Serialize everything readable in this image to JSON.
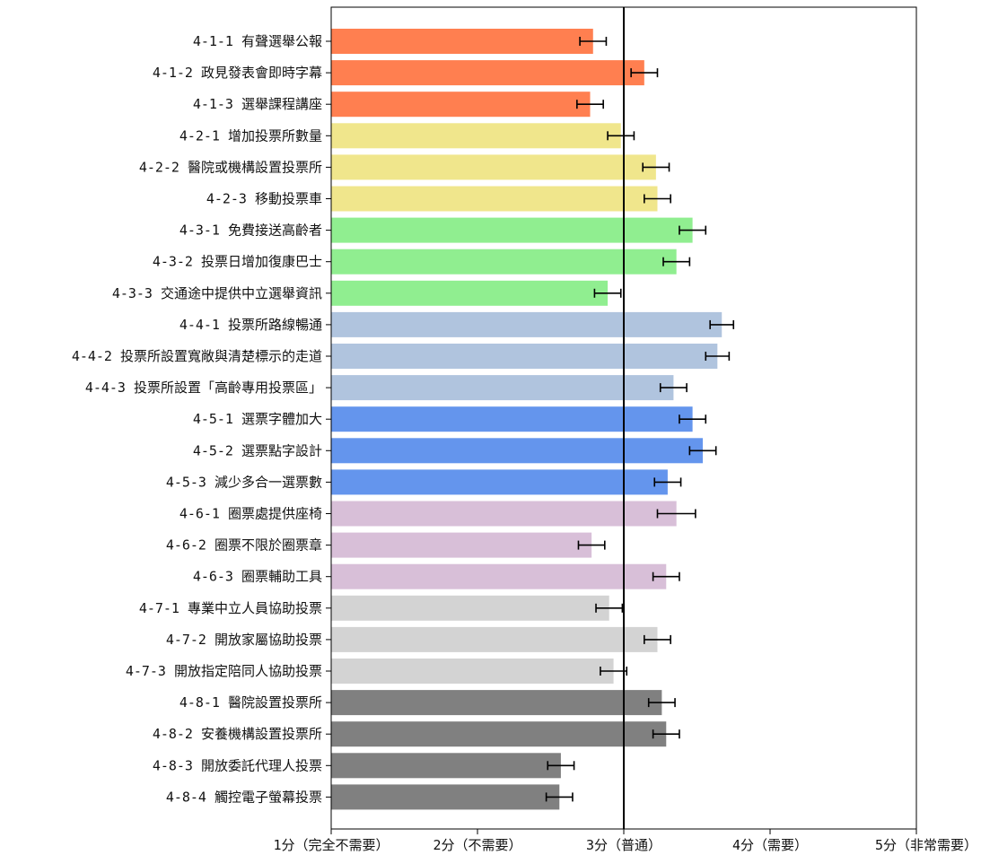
{
  "chart_data": {
    "type": "bar",
    "orientation": "horizontal",
    "categories": [
      "4-1-1 有聲選舉公報",
      "4-1-2 政見發表會即時字幕",
      "4-1-3 選舉課程講座",
      "4-2-1 增加投票所數量",
      "4-2-2 醫院或機構設置投票所",
      "4-2-3 移動投票車",
      "4-3-1 免費接送高齡者",
      "4-3-2 投票日增加復康巴士",
      "4-3-3 交通途中提供中立選舉資訊",
      "4-4-1 投票所路線暢通",
      "4-4-2 投票所設置寬敞與清楚標示的走道",
      "4-4-3 投票所設置「高齡專用投票區」",
      "4-5-1 選票字體加大",
      "4-5-2 選票點字設計",
      "4-5-3 減少多合一選票數",
      "4-6-1 圈票處提供座椅",
      "4-6-2 圈票不限於圈票章",
      "4-6-3 圈票輔助工具",
      "4-7-1 專業中立人員協助投票",
      "4-7-2 開放家屬協助投票",
      "4-7-3 開放指定陪同人協助投票",
      "4-8-1 醫院設置投票所",
      "4-8-2 安養機構設置投票所",
      "4-8-3 開放委託代理人投票",
      "4-8-4 觸控電子螢幕投票"
    ],
    "values": [
      2.79,
      3.14,
      2.77,
      2.98,
      3.22,
      3.23,
      3.47,
      3.36,
      2.89,
      3.67,
      3.64,
      3.34,
      3.47,
      3.54,
      3.3,
      3.36,
      2.78,
      3.29,
      2.9,
      3.23,
      2.93,
      3.26,
      3.29,
      2.57,
      2.56
    ],
    "errors": [
      0.09,
      0.09,
      0.09,
      0.09,
      0.09,
      0.09,
      0.09,
      0.09,
      0.09,
      0.08,
      0.08,
      0.09,
      0.09,
      0.09,
      0.09,
      0.13,
      0.09,
      0.09,
      0.09,
      0.09,
      0.09,
      0.09,
      0.09,
      0.09,
      0.09
    ],
    "colors": [
      "#ff7f50",
      "#ff7f50",
      "#ff7f50",
      "#f0e68c",
      "#f0e68c",
      "#f0e68c",
      "#90ee90",
      "#90ee90",
      "#90ee90",
      "#b0c4de",
      "#b0c4de",
      "#b0c4de",
      "#6495ed",
      "#6495ed",
      "#6495ed",
      "#d8bfd8",
      "#d8bfd8",
      "#d8bfd8",
      "#d3d3d3",
      "#d3d3d3",
      "#d3d3d3",
      "#808080",
      "#808080",
      "#808080",
      "#808080"
    ],
    "xlim": [
      1,
      5
    ],
    "xticks": [
      1,
      2,
      3,
      4,
      5
    ],
    "xtick_labels": [
      "1分（完全不需要）",
      "2分（不需要）",
      "3分（普通）",
      "4分（需要）",
      "5分（非常需要）"
    ],
    "reference_line": 3,
    "title": "",
    "xlabel": "",
    "ylabel": "",
    "grid": false,
    "legend": "none"
  }
}
